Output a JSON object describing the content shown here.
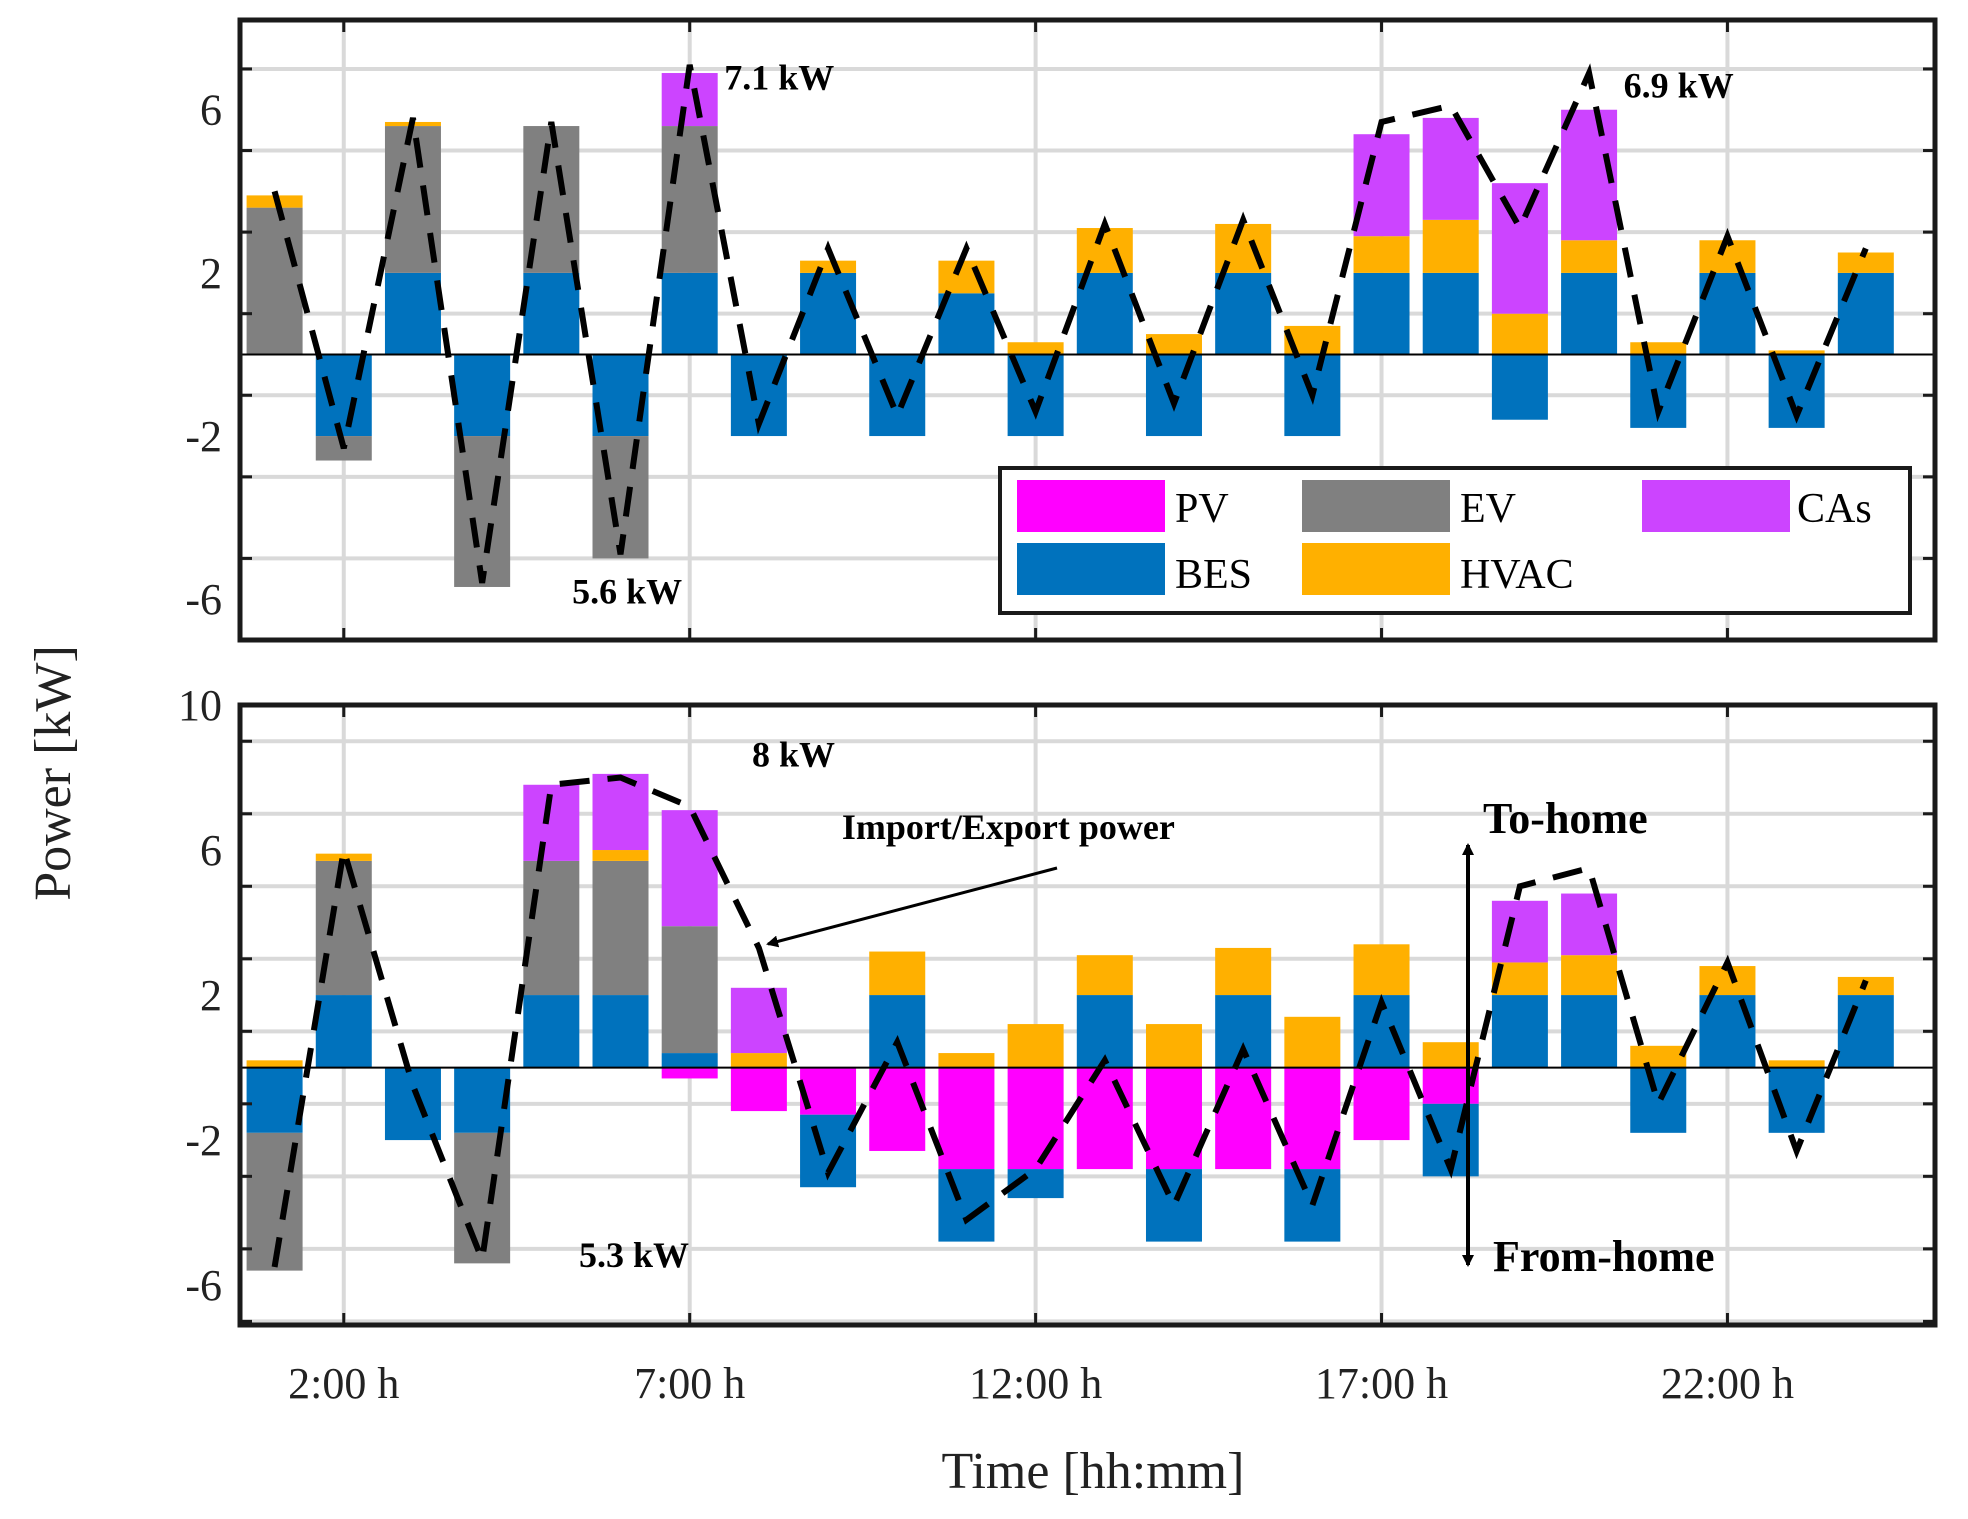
{
  "chart_data": {
    "type": "bar",
    "subtype": "stacked-bar-with-line",
    "ylabel": "Power [kW]",
    "xlabel": "Time [hh:mm]",
    "hours": [
      1,
      2,
      3,
      4,
      5,
      6,
      7,
      8,
      9,
      10,
      11,
      12,
      13,
      14,
      15,
      16,
      17,
      18,
      19,
      20,
      21,
      22,
      23,
      24
    ],
    "x_ticks": [
      {
        "hour": 2,
        "label": "2:00 h"
      },
      {
        "hour": 7,
        "label": "7:00 h"
      },
      {
        "hour": 12,
        "label": "12:00 h"
      },
      {
        "hour": 17,
        "label": "17:00 h"
      },
      {
        "hour": 22,
        "label": "22:00 h"
      }
    ],
    "colors": {
      "PV": "#ff00ff",
      "EV": "#808080",
      "CAs": "#cc44ff",
      "BES": "#0072bd",
      "HVAC": "#ffb000",
      "line": "#000000",
      "grid": "#d9d9d9"
    },
    "legend": [
      {
        "key": "PV",
        "label": "PV"
      },
      {
        "key": "EV",
        "label": "EV"
      },
      {
        "key": "CAs",
        "label": "CAs"
      },
      {
        "key": "BES",
        "label": "BES"
      },
      {
        "key": "HVAC",
        "label": "HVAC"
      }
    ],
    "panels": [
      {
        "ylim": [
          -7,
          8.2
        ],
        "yticks": [
          -6,
          -2,
          2,
          6
        ],
        "ytick_labels": [
          "-6",
          "-2",
          "2",
          "6"
        ],
        "series": [
          {
            "name": "PV",
            "values": [
              0,
              0,
              0,
              0,
              0,
              0,
              0,
              0,
              0,
              0,
              0,
              0,
              0,
              0,
              0,
              0,
              0,
              0,
              0,
              0,
              0,
              0,
              0,
              0
            ]
          },
          {
            "name": "BES",
            "values": [
              0,
              -2,
              2,
              -2,
              2,
              -2,
              2,
              -2,
              2,
              -2,
              1.5,
              -2,
              2,
              -2,
              2,
              -2,
              2,
              2,
              -1.6,
              2,
              -1.8,
              2,
              -1.8,
              2
            ]
          },
          {
            "name": "EV",
            "values": [
              3.6,
              -0.6,
              3.6,
              -3.7,
              3.6,
              -3,
              3.6,
              0,
              0,
              0,
              0,
              0,
              0,
              0,
              0,
              0,
              0,
              0,
              0,
              0,
              0,
              0,
              0,
              0
            ]
          },
          {
            "name": "HVAC",
            "values": [
              0.3,
              0,
              0.1,
              0,
              0,
              0,
              0,
              0,
              0.3,
              0,
              0.8,
              0.3,
              1.1,
              0.5,
              1.2,
              0.7,
              0.9,
              1.3,
              1,
              0.8,
              0.3,
              0.8,
              0.1,
              0.5
            ]
          },
          {
            "name": "CAs",
            "values": [
              0,
              0,
              0,
              0,
              0,
              0,
              1.3,
              0,
              0,
              0,
              0,
              0,
              0,
              0,
              0,
              0,
              2.5,
              2.5,
              3.2,
              3.2,
              0,
              0,
              0,
              0
            ]
          }
        ],
        "line": [
          4,
          -2.3,
          5.8,
          -5.6,
          5.7,
          -4.9,
          7.1,
          -1.7,
          2.6,
          -1.5,
          2.6,
          -1.4,
          3.2,
          -1.2,
          3.3,
          -1,
          5.7,
          6.1,
          3.1,
          6.9,
          -1.4,
          2.9,
          -1.5,
          2.6
        ],
        "annotations": [
          {
            "text": "7.1 kW",
            "hour": 7.5,
            "value": 6.5
          },
          {
            "text": "5.6 kW",
            "hour": 5.3,
            "value": -6.1
          },
          {
            "text": "6.9 kW",
            "hour": 20.5,
            "value": 6.3
          }
        ]
      },
      {
        "ylim": [
          -7.1,
          10
        ],
        "yticks": [
          -6,
          -2,
          2,
          6,
          10
        ],
        "ytick_labels": [
          "-6",
          "-2",
          "2",
          "6",
          "10"
        ],
        "series": [
          {
            "name": "PV",
            "values": [
              0,
              0,
              0,
              0,
              0,
              0,
              -0.3,
              -1.2,
              -1.3,
              -2.3,
              -2.8,
              -2.8,
              -2.8,
              -2.8,
              -2.8,
              -2.8,
              -2,
              -1,
              0,
              0,
              0,
              0,
              0,
              0
            ]
          },
          {
            "name": "BES",
            "values": [
              -1.8,
              2,
              -2,
              -1.8,
              2,
              2,
              0.4,
              0,
              -2,
              2,
              -2,
              -0.8,
              2,
              -2,
              2,
              -2,
              2,
              -2,
              2,
              2,
              -1.8,
              2,
              -1.8,
              2
            ]
          },
          {
            "name": "EV",
            "values": [
              -3.8,
              3.7,
              0,
              -3.6,
              3.7,
              3.7,
              3.5,
              0,
              0,
              0,
              0,
              0,
              0,
              0,
              0,
              0,
              0,
              0,
              0,
              0,
              0,
              0,
              0,
              0
            ]
          },
          {
            "name": "HVAC",
            "values": [
              0.2,
              0.2,
              0,
              0,
              0,
              0.3,
              0,
              0.4,
              0,
              1.2,
              0.4,
              1.2,
              1.1,
              1.2,
              1.3,
              1.4,
              1.4,
              0.7,
              0.9,
              1.1,
              0.6,
              0.8,
              0.2,
              0.5
            ]
          },
          {
            "name": "CAs",
            "values": [
              0,
              0,
              0,
              0,
              2.1,
              2.1,
              3.2,
              1.8,
              0,
              0,
              0,
              0,
              0,
              0,
              0,
              0,
              0,
              0,
              1.7,
              1.7,
              0,
              0,
              0,
              0
            ]
          }
        ],
        "line": [
          -5.5,
          6,
          -0.5,
          -5.3,
          7.8,
          8,
          7.2,
          3.3,
          -2.9,
          0.7,
          -4.2,
          -2.8,
          0.2,
          -3.8,
          0.5,
          -3.8,
          1.8,
          -2.8,
          5,
          5.5,
          -1,
          2.9,
          -2.3,
          2.4
        ],
        "annotations": [
          {
            "text": "8 kW",
            "hour": 7.9,
            "value": 8.3
          },
          {
            "text": "5.3 kW",
            "hour": 5.4,
            "value": -5.5
          },
          {
            "text": "Import/Export power",
            "hour": 9.2,
            "value": 6.3
          }
        ],
        "arrow_annotation_text": "Import/Export power",
        "direction_labels": {
          "up": "To-home",
          "down": "From-home"
        }
      }
    ]
  }
}
